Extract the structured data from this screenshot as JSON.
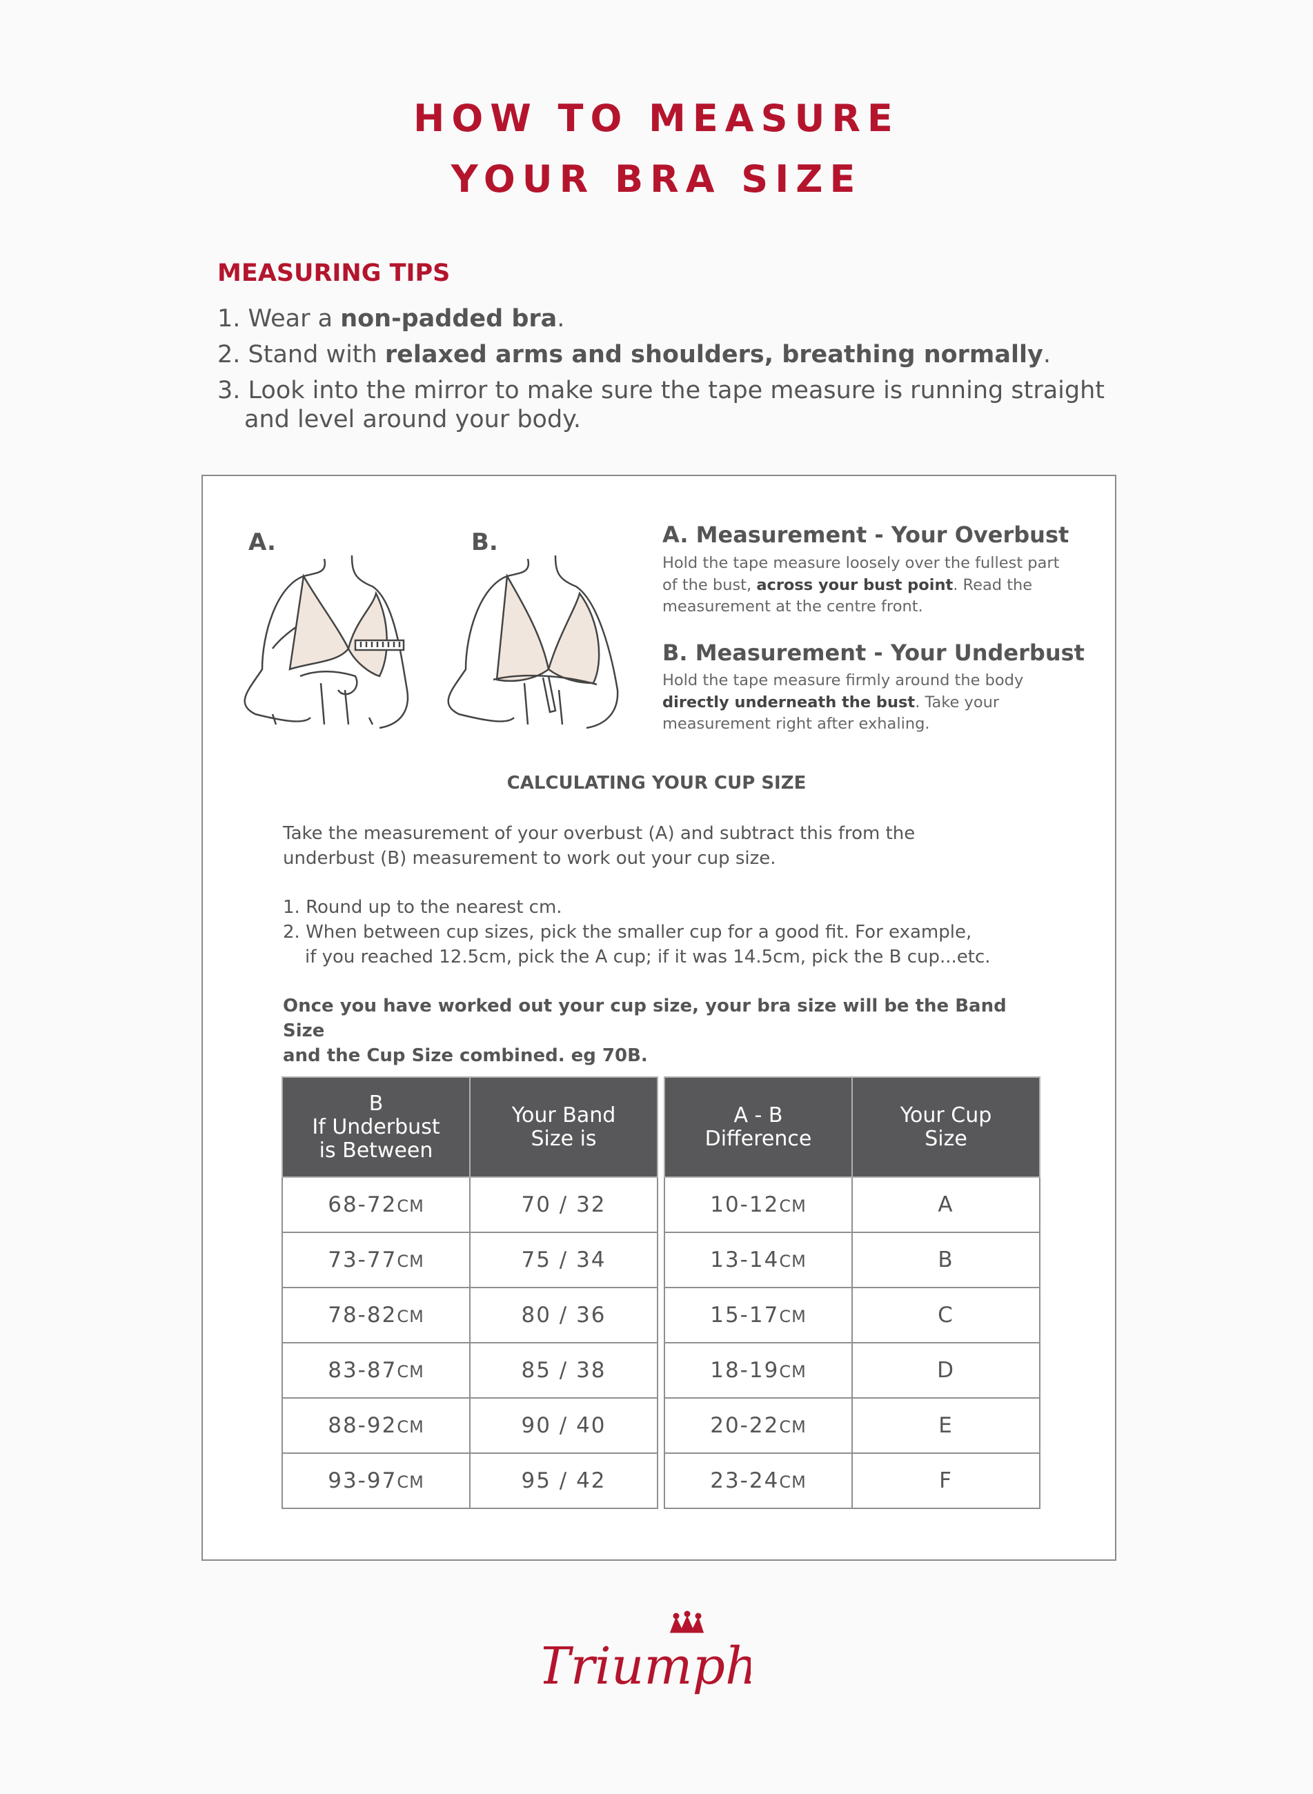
{
  "title": {
    "line1": "HOW TO MEASURE",
    "line2": "YOUR BRA SIZE"
  },
  "tips": {
    "heading": "MEASURING TIPS",
    "items": [
      {
        "num": "1.",
        "pre": "Wear a ",
        "bold": "non-padded bra",
        "post": "."
      },
      {
        "num": "2.",
        "pre": "Stand with ",
        "bold": "relaxed arms and shoulders, breathing normally",
        "post": "."
      },
      {
        "num": "3.",
        "pre": "Look into the mirror to make sure the tape measure is running straight",
        "bold": "",
        "post": "and level around your body."
      }
    ]
  },
  "illustrations": {
    "a_label": "A.",
    "b_label": "B."
  },
  "measure_a": {
    "heading": "A. Measurement - Your Overbust",
    "line1": "Hold the tape measure loosely over the fullest part",
    "line2_pre": "of the bust, ",
    "line2_bold": "across your bust point",
    "line2_post": ". Read the",
    "line3": "measurement at the centre front."
  },
  "measure_b": {
    "heading": "B. Measurement - Your Underbust",
    "line1": "Hold the tape measure firmly around the body",
    "line2_bold": "directly underneath the bust",
    "line2_post": ". Take your",
    "line3": "measurement right after exhaling."
  },
  "calc": {
    "heading": "CALCULATING YOUR CUP SIZE",
    "intro1": "Take the measurement of your overbust (A) and subtract this from the",
    "intro2": "underbust (B) measurement to work out your cup size.",
    "step1": "1. Round up to the nearest cm.",
    "step2a": "2. When between cup sizes, pick the smaller cup for a good fit. For example,",
    "step2b": "if you reached 12.5cm, pick the A cup; if it was 14.5cm, pick the B cup...etc.",
    "summary1": "Once you have worked out your cup size, your bra size will be the Band Size",
    "summary2": "and the Cup Size combined. eg 70B."
  },
  "band_table": {
    "headers": [
      [
        "B",
        "If Underbust",
        "is Between"
      ],
      [
        "Your Band",
        "Size is"
      ]
    ],
    "rows": [
      [
        "68-72",
        "cm",
        "70 / 32"
      ],
      [
        "73-77",
        "cm",
        "75 / 34"
      ],
      [
        "78-82",
        "cm",
        "80 / 36"
      ],
      [
        "83-87",
        "cm",
        "85 / 38"
      ],
      [
        "88-92",
        "cm",
        "90 / 40"
      ],
      [
        "93-97",
        "cm",
        "95 / 42"
      ]
    ]
  },
  "cup_table": {
    "headers": [
      [
        "A - B",
        "Difference"
      ],
      [
        "Your Cup",
        "Size"
      ]
    ],
    "rows": [
      [
        "10-12",
        "cm",
        "A"
      ],
      [
        "13-14",
        "cm",
        "B"
      ],
      [
        "15-17",
        "cm",
        "C"
      ],
      [
        "18-19",
        "cm",
        "D"
      ],
      [
        "20-22",
        "cm",
        "E"
      ],
      [
        "23-24",
        "cm",
        "F"
      ]
    ]
  },
  "brand": {
    "logo_text": "Triumph",
    "color": "#b4152d"
  },
  "colors": {
    "accent": "#b4152d",
    "header_bg": "#58585a",
    "text": "#555555"
  }
}
